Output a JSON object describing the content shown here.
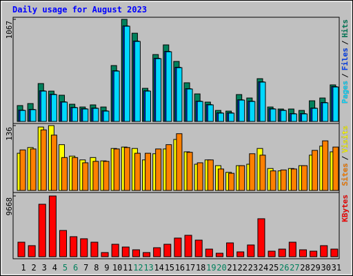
{
  "chart_data": [
    {
      "type": "bar",
      "title": "Daily usage for August 2023",
      "ylim": [
        0,
        1067
      ],
      "yticks": [
        1067
      ],
      "legend_separator": "/",
      "series": [
        {
          "name": "Hits",
          "color": "#00805c",
          "values": [
            166,
            187,
            396,
            317,
            274,
            180,
            151,
            173,
            151,
            584,
            1067,
            922,
            346,
            699,
            800,
            627,
            404,
            288,
            202,
            115,
            108,
            281,
            245,
            447,
            151,
            130,
            130,
            115,
            216,
            245,
            382
          ]
        },
        {
          "name": "Files",
          "color": "#0040ff",
          "values": [
            118,
            126,
            320,
            284,
            205,
            147,
            133,
            140,
            111,
            530,
            998,
            840,
            320,
            660,
            732,
            566,
            342,
            212,
            176,
            90,
            90,
            226,
            212,
            414,
            133,
            118,
            82,
            82,
            140,
            198,
            364
          ]
        },
        {
          "name": "Pages",
          "color": "#00d8ff",
          "values": [
            115,
            123,
            317,
            281,
            202,
            144,
            130,
            137,
            108,
            526,
            995,
            836,
            317,
            656,
            728,
            562,
            339,
            209,
            173,
            87,
            87,
            223,
            209,
            411,
            130,
            115,
            79,
            79,
            137,
            195,
            360
          ]
        }
      ]
    },
    {
      "type": "bar",
      "ylim": [
        0,
        136
      ],
      "yticks": [
        136
      ],
      "legend_separator": "/",
      "series": [
        {
          "name": "Visits",
          "color": "#ffff00",
          "values": [
            78,
            90,
            133,
            136,
            96,
            72,
            64,
            69,
            62,
            88,
            91,
            88,
            64,
            77,
            87,
            107,
            81,
            55,
            64,
            52,
            38,
            52,
            55,
            88,
            46,
            41,
            46,
            52,
            74,
            93,
            81
          ]
        },
        {
          "name": "Sites",
          "color": "#ff8000",
          "values": [
            85,
            87,
            127,
            116,
            69,
            69,
            58,
            61,
            61,
            87,
            90,
            78,
            78,
            87,
            96,
            119,
            80,
            58,
            64,
            45,
            36,
            52,
            77,
            74,
            41,
            43,
            45,
            52,
            84,
            104,
            91
          ]
        }
      ]
    },
    {
      "type": "bar",
      "ylim": [
        0,
        9668
      ],
      "yticks": [
        9668
      ],
      "categories": [
        "1",
        "2",
        "3",
        "4",
        "5",
        "6",
        "7",
        "8",
        "9",
        "10",
        "11",
        "12",
        "13",
        "14",
        "15",
        "16",
        "17",
        "18",
        "19",
        "20",
        "21",
        "22",
        "23",
        "24",
        "25",
        "26",
        "27",
        "28",
        "29",
        "30",
        "31"
      ],
      "category_colors": [
        "#000000",
        "#000000",
        "#000000",
        "#000000",
        "#00805c",
        "#00805c",
        "#000000",
        "#000000",
        "#000000",
        "#000000",
        "#000000",
        "#00805c",
        "#00805c",
        "#000000",
        "#000000",
        "#000000",
        "#000000",
        "#000000",
        "#00805c",
        "#00805c",
        "#000000",
        "#000000",
        "#000000",
        "#000000",
        "#000000",
        "#00805c",
        "#00805c",
        "#000000",
        "#000000",
        "#000000",
        "#000000"
      ],
      "series": [
        {
          "name": "KBytes",
          "color": "#ff0000",
          "values": [
            2308,
            1758,
            8352,
            9668,
            4176,
            3187,
            2857,
            2308,
            659,
            1978,
            1539,
            1099,
            659,
            1429,
            1978,
            2967,
            3407,
            2637,
            1209,
            550,
            2198,
            769,
            1868,
            6044,
            879,
            1209,
            2308,
            1099,
            879,
            1758,
            1209
          ]
        }
      ]
    }
  ]
}
